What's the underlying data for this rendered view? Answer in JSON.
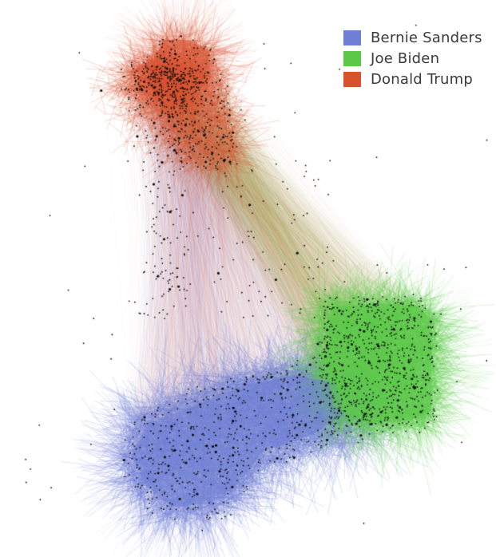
{
  "legend": [
    {
      "label": "Bernie Sanders",
      "color": "#6f7fd6"
    },
    {
      "label": "Joe Biden",
      "color": "#5cc84a"
    },
    {
      "label": "Donald Trump",
      "color": "#d8522f"
    }
  ],
  "colors": {
    "background": "#ffffff",
    "node": "#111111",
    "legend_text": "#3a3a3a"
  },
  "figure": {
    "type": "network-graph",
    "communities": [
      "Bernie Sanders",
      "Joe Biden",
      "Donald Trump"
    ]
  }
}
